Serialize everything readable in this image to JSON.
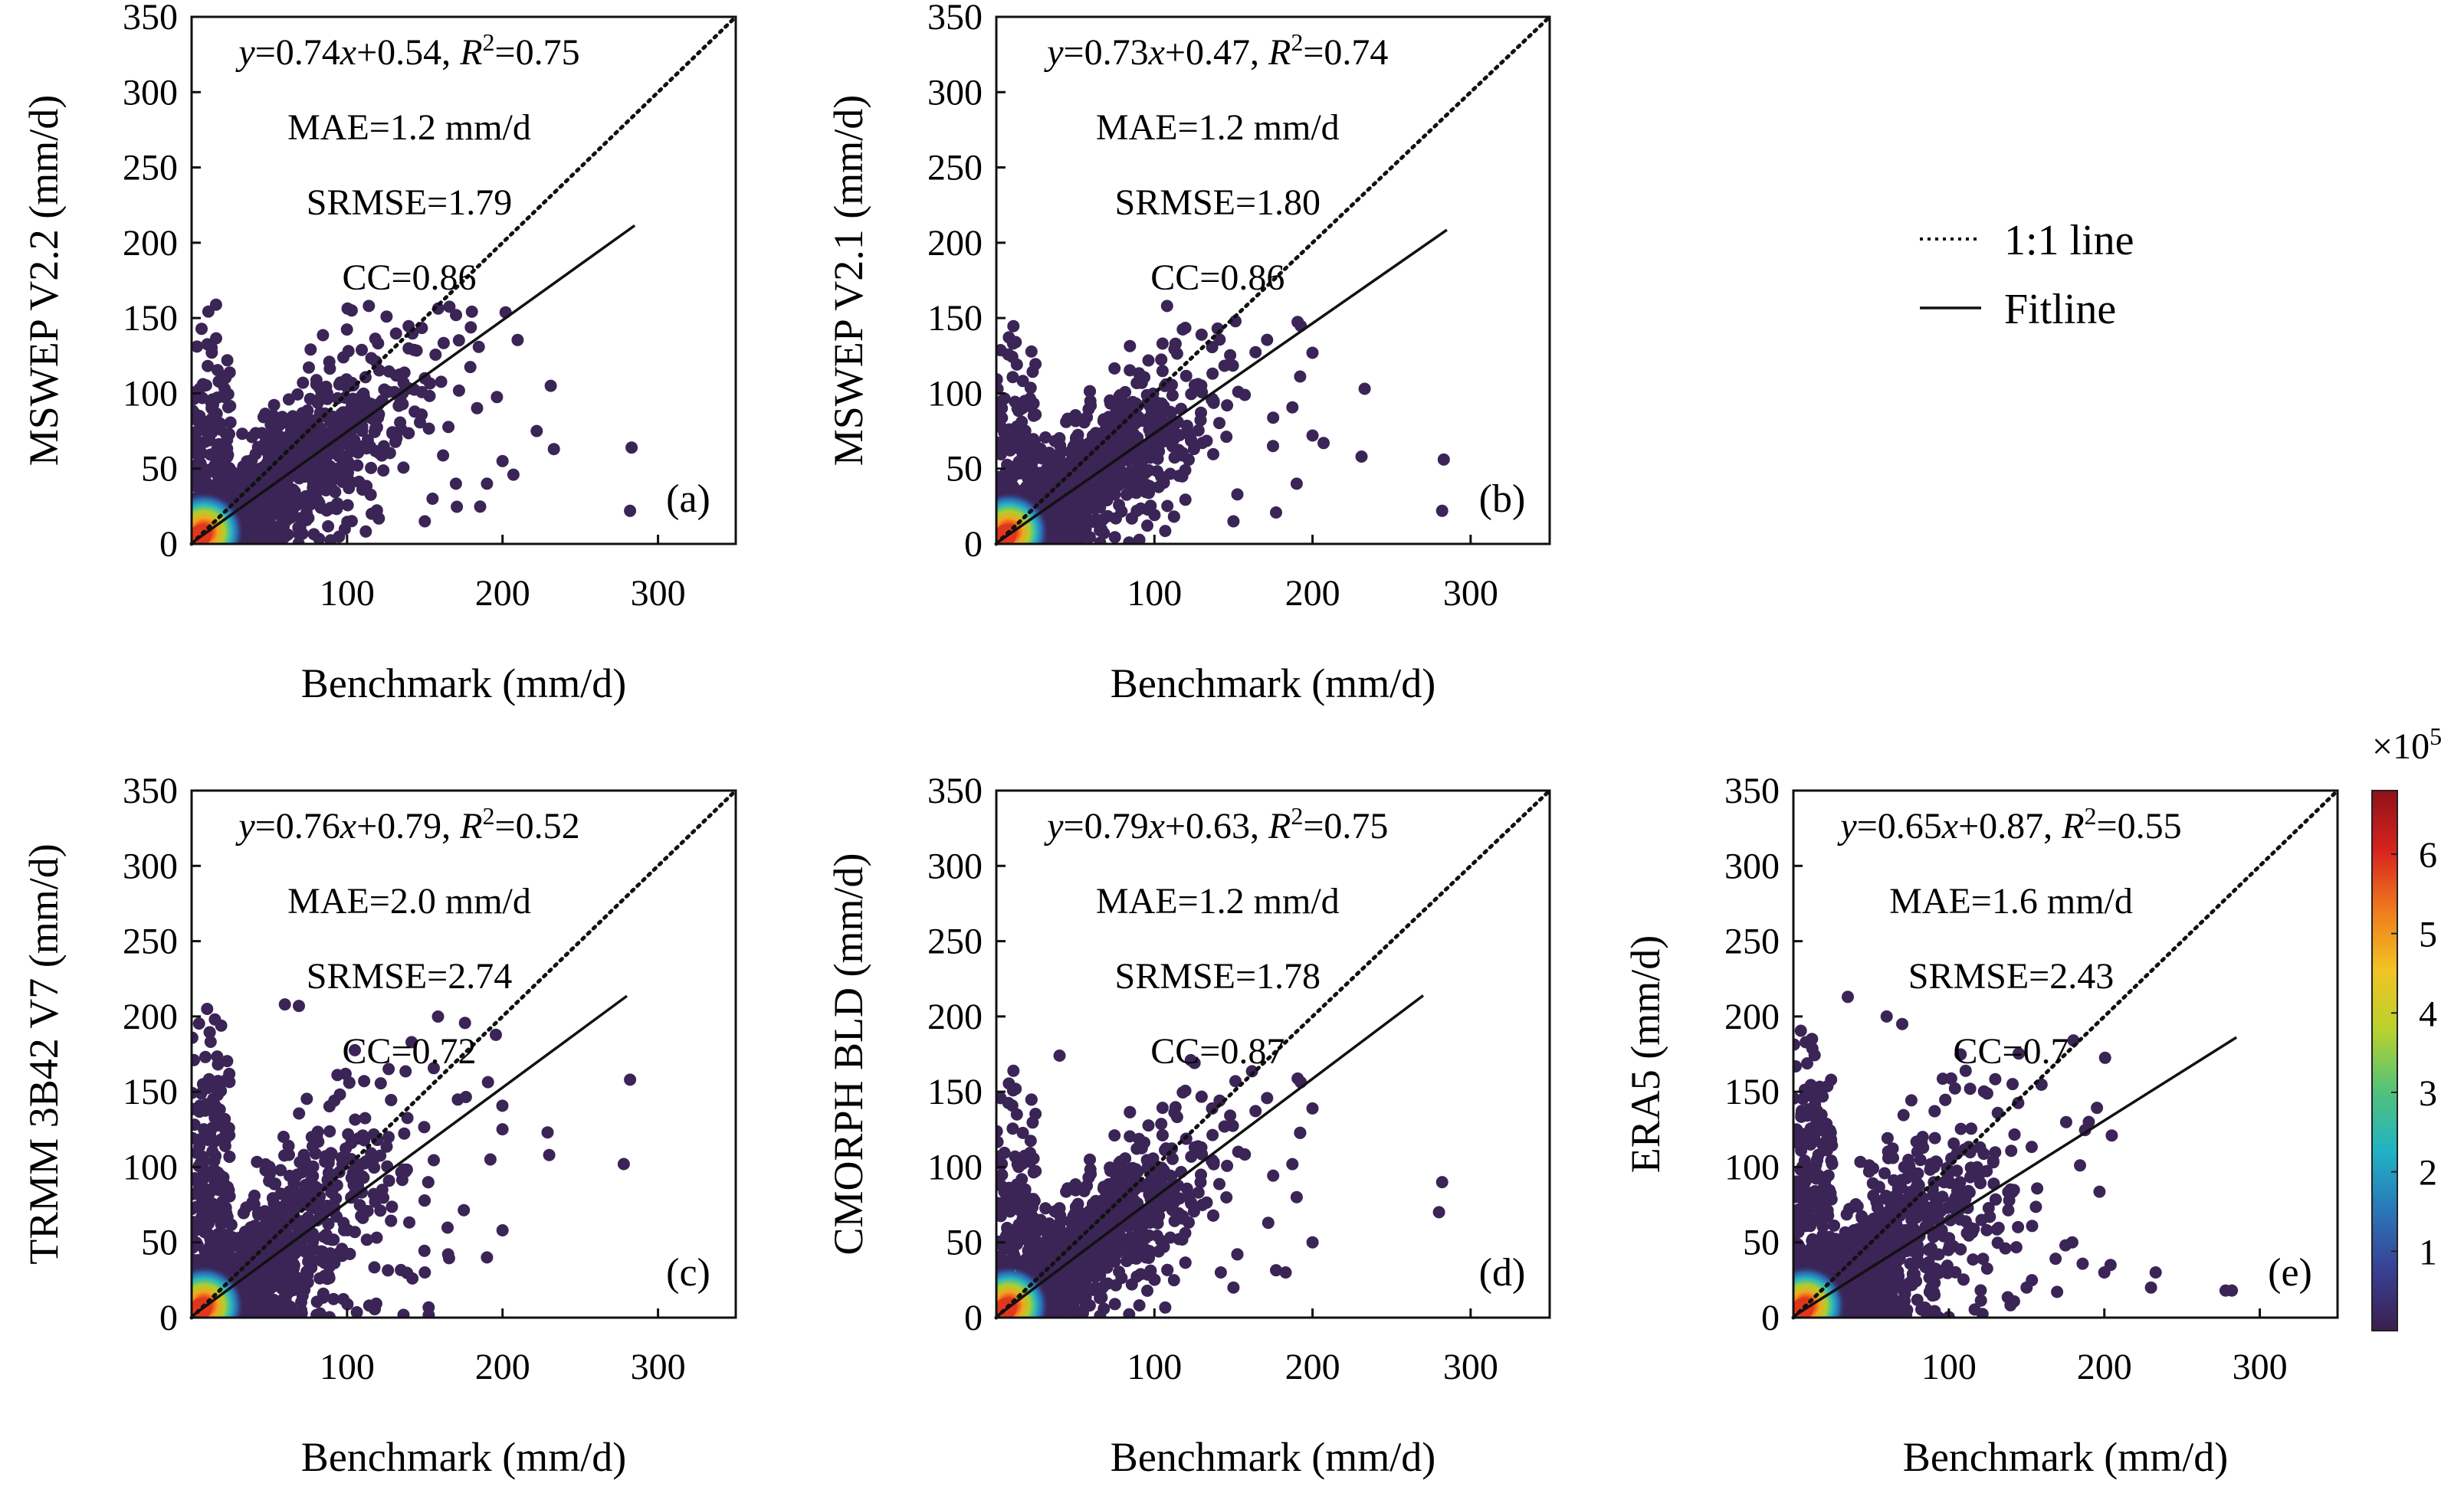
{
  "legend": {
    "items": [
      {
        "label": "1:1 line",
        "style": "dotted"
      },
      {
        "label": "Fitline",
        "style": "solid"
      }
    ]
  },
  "colorbar": {
    "multiplier_text": "×10",
    "exponent": "5",
    "ticks": [
      "1",
      "2",
      "3",
      "4",
      "5",
      "6"
    ],
    "tick_values": [
      1,
      2,
      3,
      4,
      5,
      6
    ],
    "range": [
      0,
      6.8
    ],
    "colors": [
      "#3b1f4f",
      "#3a3f93",
      "#2a76b8",
      "#21b3c4",
      "#52c27a",
      "#b7d22d",
      "#f1c423",
      "#f07b1d",
      "#d8231f",
      "#8e1218"
    ]
  },
  "chart_data": [
    {
      "id": "a",
      "type": "scatter",
      "ylabel": "MSWEP V2.2 (mm/d)",
      "xlabel": "Benchmark (mm/d)",
      "xlim": [
        0,
        350
      ],
      "ylim": [
        0,
        350
      ],
      "xticks": [
        "100",
        "200",
        "300"
      ],
      "yticks": [
        "0",
        "50",
        "100",
        "150",
        "200",
        "250",
        "300",
        "350"
      ],
      "tag": "(a)",
      "fit": {
        "slope": 0.74,
        "intercept": 0.54,
        "x_end": 285
      },
      "stats": {
        "eq_a": "0.74",
        "eq_b": "0.54",
        "r2": "0.75",
        "mae": "MAE=1.2 mm/d",
        "srmse": "SRMSE=1.79",
        "cc": "CC=0.86"
      },
      "cloud": {
        "xmax": 215,
        "ymax": 160,
        "spread": 1.0
      },
      "outliers": [
        [
          282,
          22
        ],
        [
          283,
          64
        ],
        [
          233,
          63
        ],
        [
          231,
          105
        ],
        [
          222,
          75
        ],
        [
          207,
          46
        ],
        [
          200,
          55
        ],
        [
          190,
          40
        ],
        [
          170,
          40
        ],
        [
          150,
          15
        ],
        [
          155,
          30
        ],
        [
          114,
          158
        ],
        [
          103,
          155
        ],
        [
          150,
          110
        ]
      ]
    },
    {
      "id": "b",
      "type": "scatter",
      "ylabel": "MSWEP V2.1 (mm/d)",
      "xlabel": "Benchmark (mm/d)",
      "xlim": [
        0,
        350
      ],
      "ylim": [
        0,
        350
      ],
      "xticks": [
        "100",
        "200",
        "300"
      ],
      "yticks": [
        "0",
        "50",
        "100",
        "150",
        "200",
        "250",
        "300",
        "350"
      ],
      "tag": "(b)",
      "fit": {
        "slope": 0.73,
        "intercept": 0.47,
        "x_end": 285
      },
      "stats": {
        "eq_a": "0.73",
        "eq_b": "0.47",
        "r2": "0.74",
        "mae": "MAE=1.2 mm/d",
        "srmse": "SRMSE=1.80",
        "cc": "CC=0.86"
      },
      "cloud": {
        "xmax": 205,
        "ymax": 150,
        "spread": 1.0
      },
      "outliers": [
        [
          282,
          22
        ],
        [
          283,
          56
        ],
        [
          233,
          103
        ],
        [
          231,
          58
        ],
        [
          207,
          67
        ],
        [
          200,
          72
        ],
        [
          190,
          40
        ],
        [
          175,
          65
        ],
        [
          150,
          15
        ],
        [
          108,
          158
        ],
        [
          140,
          143
        ]
      ]
    },
    {
      "id": "c",
      "type": "scatter",
      "ylabel": "TRMM 3B42 V7 (mm/d)",
      "xlabel": "Benchmark (mm/d)",
      "xlim": [
        0,
        350
      ],
      "ylim": [
        0,
        350
      ],
      "xticks": [
        "100",
        "200",
        "300"
      ],
      "yticks": [
        "0",
        "50",
        "100",
        "150",
        "200",
        "250",
        "300",
        "350"
      ],
      "tag": "(c)",
      "fit": {
        "slope": 0.76,
        "intercept": 0.79,
        "x_end": 280
      },
      "stats": {
        "eq_a": "0.76",
        "eq_b": "0.79",
        "r2": "0.52",
        "mae": "MAE=2.0 mm/d",
        "srmse": "SRMSE=2.74",
        "cc": "CC=0.72"
      },
      "cloud": {
        "xmax": 205,
        "ymax": 205,
        "spread": 1.5
      },
      "outliers": [
        [
          282,
          158
        ],
        [
          278,
          102
        ],
        [
          230,
          108
        ],
        [
          229,
          123
        ],
        [
          200,
          58
        ],
        [
          190,
          40
        ],
        [
          165,
          42
        ],
        [
          142,
          26
        ],
        [
          150,
          30
        ],
        [
          60,
          208
        ],
        [
          69,
          207
        ],
        [
          15,
          198
        ],
        [
          10,
          205
        ]
      ]
    },
    {
      "id": "d",
      "type": "scatter",
      "ylabel": "CMORPH BLD (mm/d)",
      "xlabel": "Benchmark (mm/d)",
      "xlim": [
        0,
        350
      ],
      "ylim": [
        0,
        350
      ],
      "xticks": [
        "100",
        "200",
        "300"
      ],
      "yticks": [
        "0",
        "50",
        "100",
        "150",
        "200",
        "250",
        "300",
        "350"
      ],
      "tag": "(d)",
      "fit": {
        "slope": 0.79,
        "intercept": 0.63,
        "x_end": 270
      },
      "stats": {
        "eq_a": "0.79",
        "eq_b": "0.63",
        "r2": "0.75",
        "mae": "MAE=1.2 mm/d",
        "srmse": "SRMSE=1.78",
        "cc": "CC=0.87"
      },
      "cloud": {
        "xmax": 205,
        "ymax": 170,
        "spread": 1.0
      },
      "outliers": [
        [
          282,
          90
        ],
        [
          280,
          70
        ],
        [
          200,
          50
        ],
        [
          183,
          30
        ],
        [
          190,
          80
        ],
        [
          150,
          20
        ],
        [
          142,
          30
        ],
        [
          172,
          63
        ],
        [
          123,
          171
        ],
        [
          40,
          174
        ]
      ]
    },
    {
      "id": "e",
      "type": "scatter",
      "ylabel": "ERA5 (mm/d)",
      "xlabel": "Benchmark (mm/d)",
      "xlim": [
        0,
        350
      ],
      "ylim": [
        0,
        350
      ],
      "xticks": [
        "100",
        "200",
        "300"
      ],
      "yticks": [
        "0",
        "50",
        "100",
        "150",
        "200",
        "250",
        "300",
        "350"
      ],
      "tag": "(e)",
      "fit": {
        "slope": 0.65,
        "intercept": 0.87,
        "x_end": 285
      },
      "stats": {
        "eq_a": "0.65",
        "eq_b": "0.87",
        "r2": "0.55",
        "mae": "MAE=1.6 mm/d",
        "srmse": "SRMSE=2.43",
        "cc": "CC=0.7"
      },
      "cloud": {
        "xmax": 210,
        "ymax": 200,
        "spread": 1.6
      },
      "outliers": [
        [
          282,
          18
        ],
        [
          278,
          18
        ],
        [
          233,
          30
        ],
        [
          230,
          20
        ],
        [
          204,
          35
        ],
        [
          200,
          30
        ],
        [
          190,
          130
        ],
        [
          175,
          48
        ],
        [
          150,
          20
        ],
        [
          60,
          200
        ],
        [
          70,
          195
        ],
        [
          35,
          213
        ],
        [
          12,
          185
        ]
      ]
    }
  ]
}
